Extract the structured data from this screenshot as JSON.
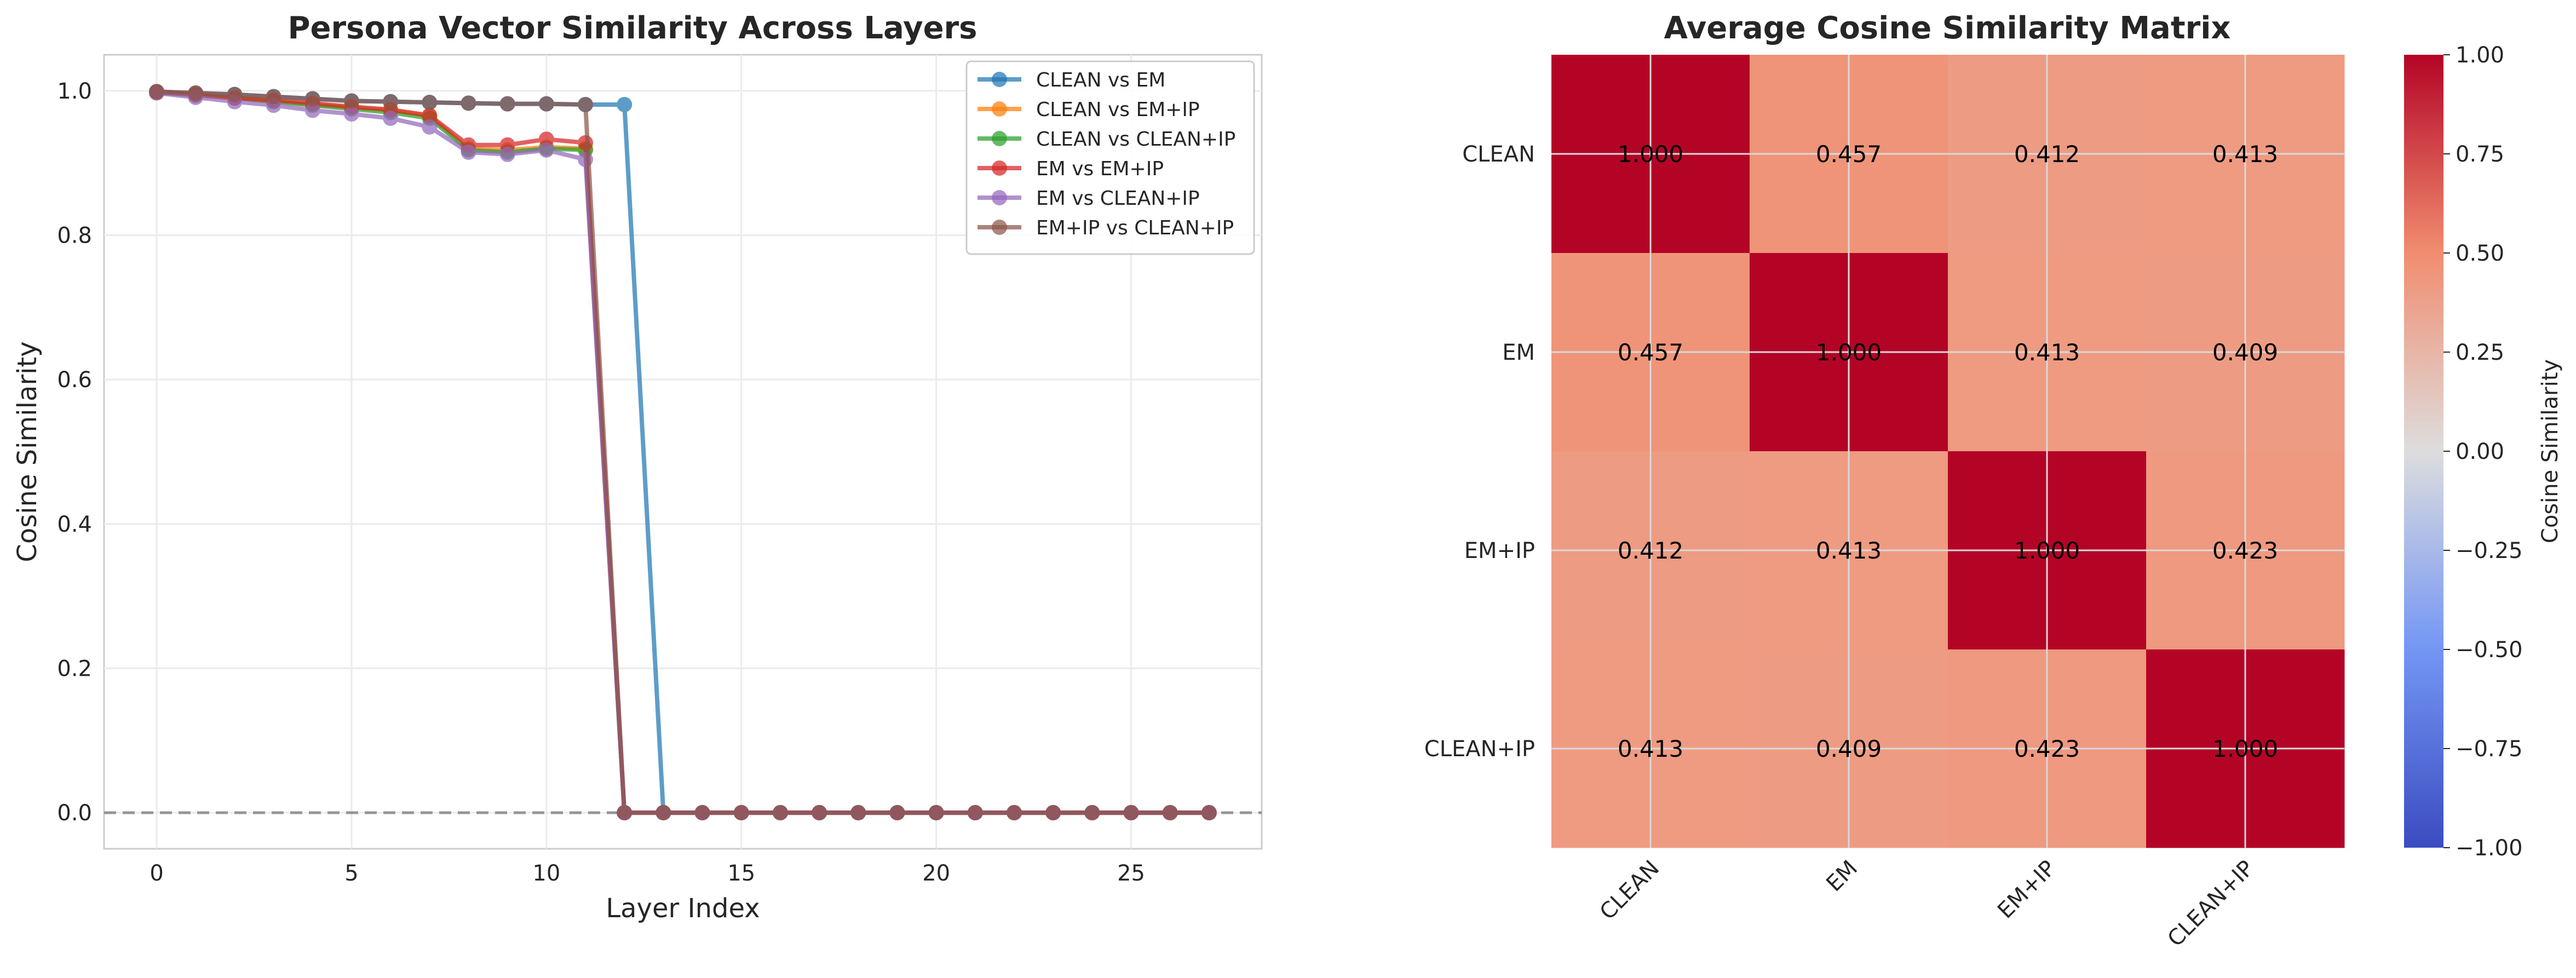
{
  "chart_data": [
    {
      "type": "line",
      "title": "Persona Vector Similarity Across Layers",
      "xlabel": "Layer Index",
      "ylabel": "Cosine Similarity",
      "xlim": [
        -1.35,
        28.35
      ],
      "ylim": [
        -0.05,
        1.05
      ],
      "xticks": [
        0,
        5,
        10,
        15,
        20,
        25
      ],
      "yticks": [
        0.0,
        0.2,
        0.4,
        0.6,
        0.8,
        1.0
      ],
      "xtick_labels": [
        "0",
        "5",
        "10",
        "15",
        "20",
        "25"
      ],
      "ytick_labels": [
        "0.0",
        "0.2",
        "0.4",
        "0.6",
        "0.8",
        "1.0"
      ],
      "grid": true,
      "legend_position": "upper right",
      "reference_line": {
        "y": 0.0,
        "style": "dashed",
        "color": "#7f7f7f"
      },
      "x": [
        0,
        1,
        2,
        3,
        4,
        5,
        6,
        7,
        8,
        9,
        10,
        11,
        12,
        13,
        14,
        15,
        16,
        17,
        18,
        19,
        20,
        21,
        22,
        23,
        24,
        25,
        26,
        27
      ],
      "series": [
        {
          "name": "CLEAN vs EM",
          "color": "#1f77b4",
          "values": [
            0.999,
            0.997,
            0.995,
            0.992,
            0.989,
            0.986,
            0.985,
            0.984,
            0.983,
            0.982,
            0.982,
            0.981,
            0.981,
            0,
            0,
            0,
            0,
            0,
            0,
            0,
            0,
            0,
            0,
            0,
            0,
            0,
            0,
            0
          ]
        },
        {
          "name": "CLEAN vs EM+IP",
          "color": "#ff7f0e",
          "values": [
            0.998,
            0.994,
            0.99,
            0.986,
            0.981,
            0.977,
            0.973,
            0.965,
            0.92,
            0.918,
            0.922,
            0.92,
            0,
            0,
            0,
            0,
            0,
            0,
            0,
            0,
            0,
            0,
            0,
            0,
            0,
            0,
            0,
            0
          ]
        },
        {
          "name": "CLEAN vs CLEAN+IP",
          "color": "#2ca02c",
          "values": [
            0.998,
            0.994,
            0.99,
            0.985,
            0.98,
            0.975,
            0.97,
            0.962,
            0.918,
            0.915,
            0.92,
            0.918,
            0,
            0,
            0,
            0,
            0,
            0,
            0,
            0,
            0,
            0,
            0,
            0,
            0,
            0,
            0,
            0
          ]
        },
        {
          "name": "EM vs EM+IP",
          "color": "#d62728",
          "values": [
            0.998,
            0.995,
            0.99,
            0.987,
            0.983,
            0.978,
            0.974,
            0.966,
            0.925,
            0.925,
            0.933,
            0.928,
            0,
            0,
            0,
            0,
            0,
            0,
            0,
            0,
            0,
            0,
            0,
            0,
            0,
            0,
            0,
            0
          ]
        },
        {
          "name": "EM vs CLEAN+IP",
          "color": "#9467bd",
          "values": [
            0.997,
            0.991,
            0.985,
            0.98,
            0.973,
            0.968,
            0.962,
            0.95,
            0.915,
            0.912,
            0.918,
            0.905,
            0,
            0,
            0,
            0,
            0,
            0,
            0,
            0,
            0,
            0,
            0,
            0,
            0,
            0,
            0,
            0
          ]
        },
        {
          "name": "EM+IP vs CLEAN+IP",
          "color": "#8c564b",
          "values": [
            0.999,
            0.997,
            0.995,
            0.992,
            0.989,
            0.986,
            0.985,
            0.984,
            0.983,
            0.982,
            0.982,
            0.981,
            0,
            0,
            0,
            0,
            0,
            0,
            0,
            0,
            0,
            0,
            0,
            0,
            0,
            0,
            0,
            0
          ]
        }
      ]
    },
    {
      "type": "heatmap",
      "title": "Average Cosine Similarity Matrix",
      "rows": [
        "CLEAN",
        "EM",
        "EM+IP",
        "CLEAN+IP"
      ],
      "cols": [
        "CLEAN",
        "EM",
        "EM+IP",
        "CLEAN+IP"
      ],
      "values": [
        [
          1.0,
          0.457,
          0.412,
          0.413
        ],
        [
          0.457,
          1.0,
          0.413,
          0.409
        ],
        [
          0.412,
          0.413,
          1.0,
          0.423
        ],
        [
          0.413,
          0.409,
          0.423,
          1.0
        ]
      ],
      "colormap": "coolwarm",
      "vmin": -1.0,
      "vmax": 1.0,
      "colorbar_label": "Cosine Similarity",
      "colorbar_ticks": [
        "1.00",
        "0.75",
        "0.50",
        "0.25",
        "0.00",
        "−0.25",
        "−0.50",
        "−0.75",
        "−1.00"
      ]
    }
  ]
}
